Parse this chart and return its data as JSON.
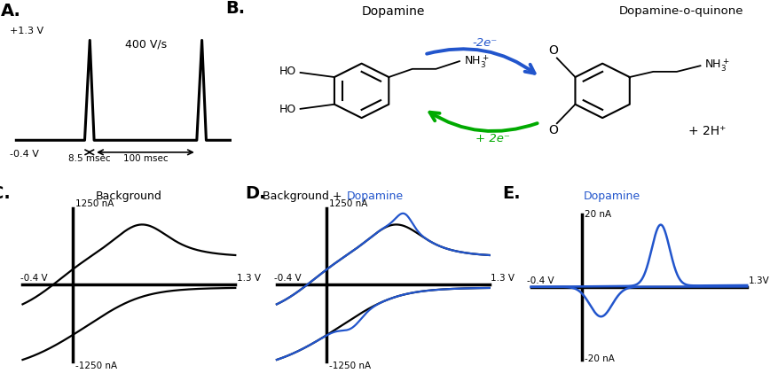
{
  "fig_width": 8.68,
  "fig_height": 4.3,
  "bg_color": "#ffffff",
  "panel_A": {
    "label": "A.",
    "y_high": "+1.3 V",
    "y_low": "-0.4 V",
    "label_400": "400 V/s",
    "label_8p5": "8.5 msec",
    "label_100": "100 msec"
  },
  "panel_B": {
    "label": "B.",
    "title_dopamine": "Dopamine",
    "title_quinone": "Dopamine-o-quinone",
    "minus2e": "-2e⁻",
    "plus2e": "+ 2e⁻",
    "plus2H": "+ 2H⁺",
    "NH3plus": "NH₃⁺"
  },
  "panel_C": {
    "label": "C.",
    "title": "Background",
    "y_top": "1250 nA",
    "y_bot": "-1250 nA",
    "x_left": "-0.4 V",
    "x_right": "1.3 V"
  },
  "panel_D": {
    "label": "D.",
    "title_black": "Background + ",
    "title_blue": "Dopamine",
    "y_top": "1250 nA",
    "y_bot": "-1250 nA",
    "x_left": "-0.4 V",
    "x_right": "1.3 V"
  },
  "panel_E": {
    "label": "E.",
    "title": "Dopamine",
    "y_top": "20 nA",
    "y_bot": "-20 nA",
    "x_left": "-0.4 V",
    "x_right": "1.3V"
  },
  "colors": {
    "black": "#000000",
    "blue": "#2255cc",
    "green": "#00aa00"
  }
}
